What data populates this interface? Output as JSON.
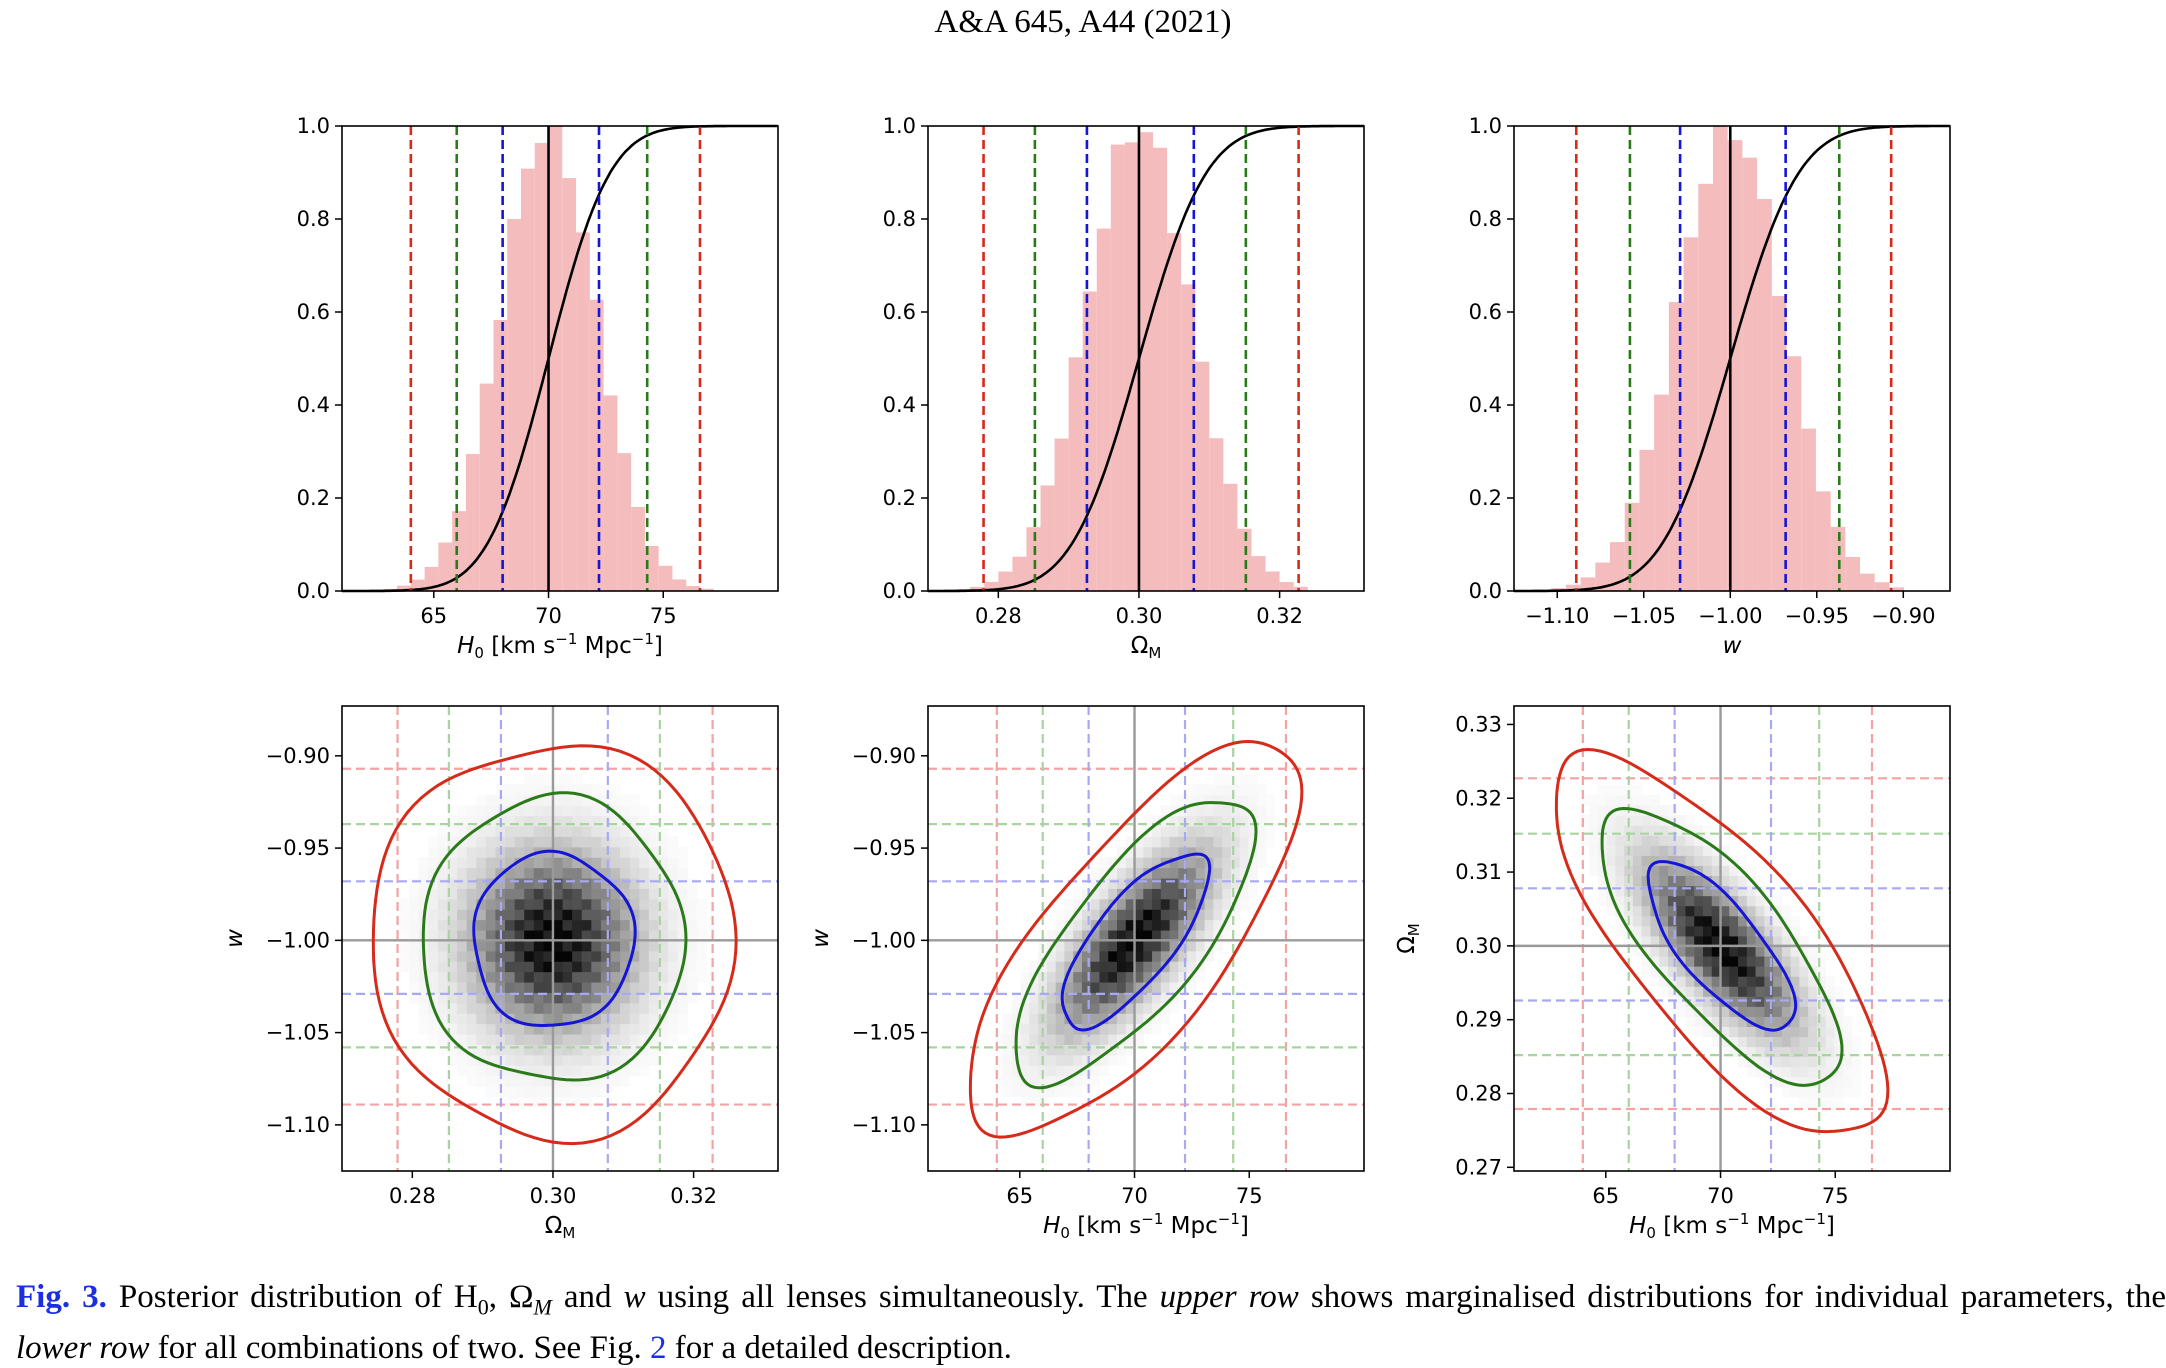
{
  "header": "A&A 645, A44 (2021)",
  "caption": {
    "fig_label": "Fig. 3.",
    "text_before_upper": "Posterior distribution of H",
    "sub0": "0",
    "omega": "Ω",
    "subM": "M",
    "and_w": "and",
    "w": "w",
    "text_after_w": "using all lenses simultaneously. The",
    "upper_row": "upper row",
    "mid1": "shows marginalised distributions for individual parameters, the",
    "lower_row": "lower row",
    "mid2": "for all combinations of two. See Fig.",
    "fig_ref": "2",
    "end": "for a detailed description."
  },
  "colors": {
    "hist": "#f4bcbc",
    "cdf": "#000000",
    "sigma1": "#1515d6",
    "sigma2": "#2a7a1a",
    "sigma3": "#d62a1a"
  },
  "chart_data": [
    {
      "type": "histogram",
      "parameter": "H0",
      "xlabel": "H_0 [km s^-1 Mpc^-1]",
      "xlim": [
        61,
        80
      ],
      "ylim": [
        0,
        1
      ],
      "xticks": [
        "65",
        "70",
        "75"
      ],
      "xtick_values": [
        65,
        70,
        75
      ],
      "yticks": [
        "0.0",
        "0.2",
        "0.4",
        "0.6",
        "0.8",
        "1.0"
      ],
      "mean": 70.0,
      "sigma": 2.1,
      "bin_width": 0.6,
      "lines": {
        "median": 70.0,
        "s1": [
          68.0,
          72.2
        ],
        "s2": [
          66.0,
          74.3
        ],
        "s3": [
          64.0,
          76.6
        ]
      }
    },
    {
      "type": "histogram",
      "parameter": "Omega_M",
      "xlabel": "Ω_M",
      "xlim": [
        0.27,
        0.332
      ],
      "ylim": [
        0,
        1
      ],
      "xticks": [
        "0.28",
        "0.30",
        "0.32"
      ],
      "xtick_values": [
        0.28,
        0.3,
        0.32
      ],
      "yticks": [
        "0.0",
        "0.2",
        "0.4",
        "0.6",
        "0.8",
        "1.0"
      ],
      "mean": 0.3,
      "sigma": 0.0075,
      "bin_width": 0.002,
      "lines": {
        "median": 0.3,
        "s1": [
          0.2926,
          0.3078
        ],
        "s2": [
          0.2852,
          0.3152
        ],
        "s3": [
          0.2779,
          0.3227
        ]
      }
    },
    {
      "type": "histogram",
      "parameter": "w",
      "xlabel": "w",
      "xlim": [
        -1.125,
        -0.873
      ],
      "ylim": [
        0,
        1
      ],
      "xticks": [
        "−1.10",
        "−1.05",
        "−1.00",
        "−0.95",
        "−0.90"
      ],
      "xtick_values": [
        -1.1,
        -1.05,
        -1.0,
        -0.95,
        -0.9
      ],
      "yticks": [
        "0.0",
        "0.2",
        "0.4",
        "0.6",
        "0.8",
        "1.0"
      ],
      "mean": -1.0,
      "sigma": 0.031,
      "bin_width": 0.0085,
      "lines": {
        "median": -1.0,
        "s1": [
          -1.029,
          -0.968
        ],
        "s2": [
          -1.058,
          -0.937
        ],
        "s3": [
          -1.089,
          -0.907
        ]
      }
    },
    {
      "type": "heatmap",
      "xparam": "Omega_M",
      "yparam": "w",
      "xlabel": "Ω_M",
      "ylabel": "w",
      "xlim": [
        0.27,
        0.332
      ],
      "ylim": [
        -1.125,
        -0.873
      ],
      "xticks": [
        "0.28",
        "0.30",
        "0.32"
      ],
      "xtick_values": [
        0.28,
        0.3,
        0.32
      ],
      "yticks": [
        "−0.90",
        "−0.95",
        "−1.00",
        "−1.05",
        "−1.10"
      ],
      "ytick_values": [
        -0.9,
        -0.95,
        -1.0,
        -1.05,
        -1.1
      ],
      "center": [
        0.3,
        -1.0
      ],
      "sigma": [
        0.0075,
        0.031
      ],
      "rho": 0.0,
      "xlines": {
        "median": 0.3,
        "s1": [
          0.2926,
          0.3078
        ],
        "s2": [
          0.2852,
          0.3152
        ],
        "s3": [
          0.2779,
          0.3227
        ]
      },
      "ylines": {
        "median": -1.0,
        "s1": [
          -1.029,
          -0.968
        ],
        "s2": [
          -1.058,
          -0.937
        ],
        "s3": [
          -1.089,
          -0.907
        ]
      }
    },
    {
      "type": "heatmap",
      "xparam": "H0",
      "yparam": "w",
      "xlabel": "H_0 [km s^-1 Mpc^-1]",
      "ylabel": "w",
      "xlim": [
        61,
        80
      ],
      "ylim": [
        -1.125,
        -0.873
      ],
      "xticks": [
        "65",
        "70",
        "75"
      ],
      "xtick_values": [
        65,
        70,
        75
      ],
      "yticks": [
        "−0.90",
        "−0.95",
        "−1.00",
        "−1.05",
        "−1.10"
      ],
      "ytick_values": [
        -0.9,
        -0.95,
        -1.0,
        -1.05,
        -1.1
      ],
      "center": [
        70.0,
        -1.0
      ],
      "sigma": [
        2.1,
        0.031
      ],
      "rho": 0.75,
      "xlines": {
        "median": 70.0,
        "s1": [
          68.0,
          72.2
        ],
        "s2": [
          66.0,
          74.3
        ],
        "s3": [
          64.0,
          76.6
        ]
      },
      "ylines": {
        "median": -1.0,
        "s1": [
          -1.029,
          -0.968
        ],
        "s2": [
          -1.058,
          -0.937
        ],
        "s3": [
          -1.089,
          -0.907
        ]
      }
    },
    {
      "type": "heatmap",
      "xparam": "H0",
      "yparam": "Omega_M",
      "xlabel": "H_0 [km s^-1 Mpc^-1]",
      "ylabel": "Ω_M",
      "xlim": [
        61,
        80
      ],
      "ylim": [
        0.2695,
        0.3325
      ],
      "xticks": [
        "65",
        "70",
        "75"
      ],
      "xtick_values": [
        65,
        70,
        75
      ],
      "yticks": [
        "0.27",
        "0.28",
        "0.29",
        "0.30",
        "0.31",
        "0.32",
        "0.33"
      ],
      "ytick_values": [
        0.27,
        0.28,
        0.29,
        0.3,
        0.31,
        0.32,
        0.33
      ],
      "center": [
        70.0,
        0.3
      ],
      "sigma": [
        2.1,
        0.0075
      ],
      "rho": -0.75,
      "xlines": {
        "median": 70.0,
        "s1": [
          68.0,
          72.2
        ],
        "s2": [
          66.0,
          74.3
        ],
        "s3": [
          64.0,
          76.6
        ]
      },
      "ylines": {
        "median": 0.3,
        "s1": [
          0.2926,
          0.3078
        ],
        "s2": [
          0.2852,
          0.3152
        ],
        "s3": [
          0.2779,
          0.3227
        ]
      }
    }
  ]
}
